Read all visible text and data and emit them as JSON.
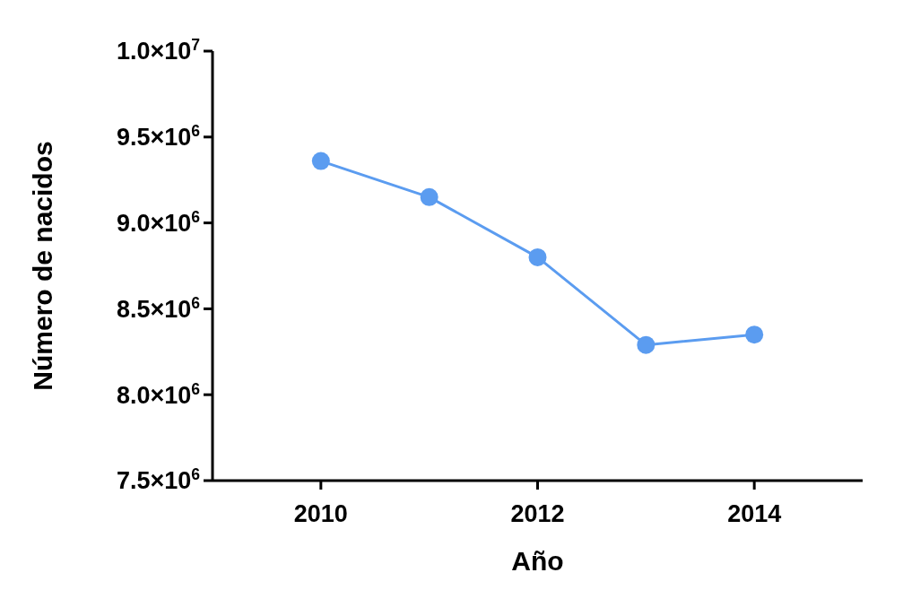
{
  "chart_data": {
    "type": "line",
    "xlabel": "Año",
    "ylabel": "Número de nacidos",
    "x": [
      2010,
      2011,
      2012,
      2013,
      2014
    ],
    "series": [
      {
        "color": "#5b9cf0",
        "values": [
          9360000,
          9150000,
          8800000,
          8290000,
          8350000
        ]
      }
    ],
    "xlim": [
      2009,
      2015
    ],
    "xticks": [
      2010,
      2012,
      2014
    ],
    "ylim": [
      7500000,
      10000000
    ],
    "yticks": [
      {
        "value": 7500000,
        "label": "7.5×10$^{6}$"
      },
      {
        "value": 8000000,
        "label": "8.0×10$^{6}$"
      },
      {
        "value": 8500000,
        "label": "8.5×10$^{6}$"
      },
      {
        "value": 9000000,
        "label": "9.0×10$^{6}$"
      },
      {
        "value": 9500000,
        "label": "9.5×10$^{6}$"
      },
      {
        "value": 10000000,
        "label": "1.0×10$^{7}$"
      }
    ],
    "marker": "circle",
    "line_style": "solid",
    "grid": false
  }
}
